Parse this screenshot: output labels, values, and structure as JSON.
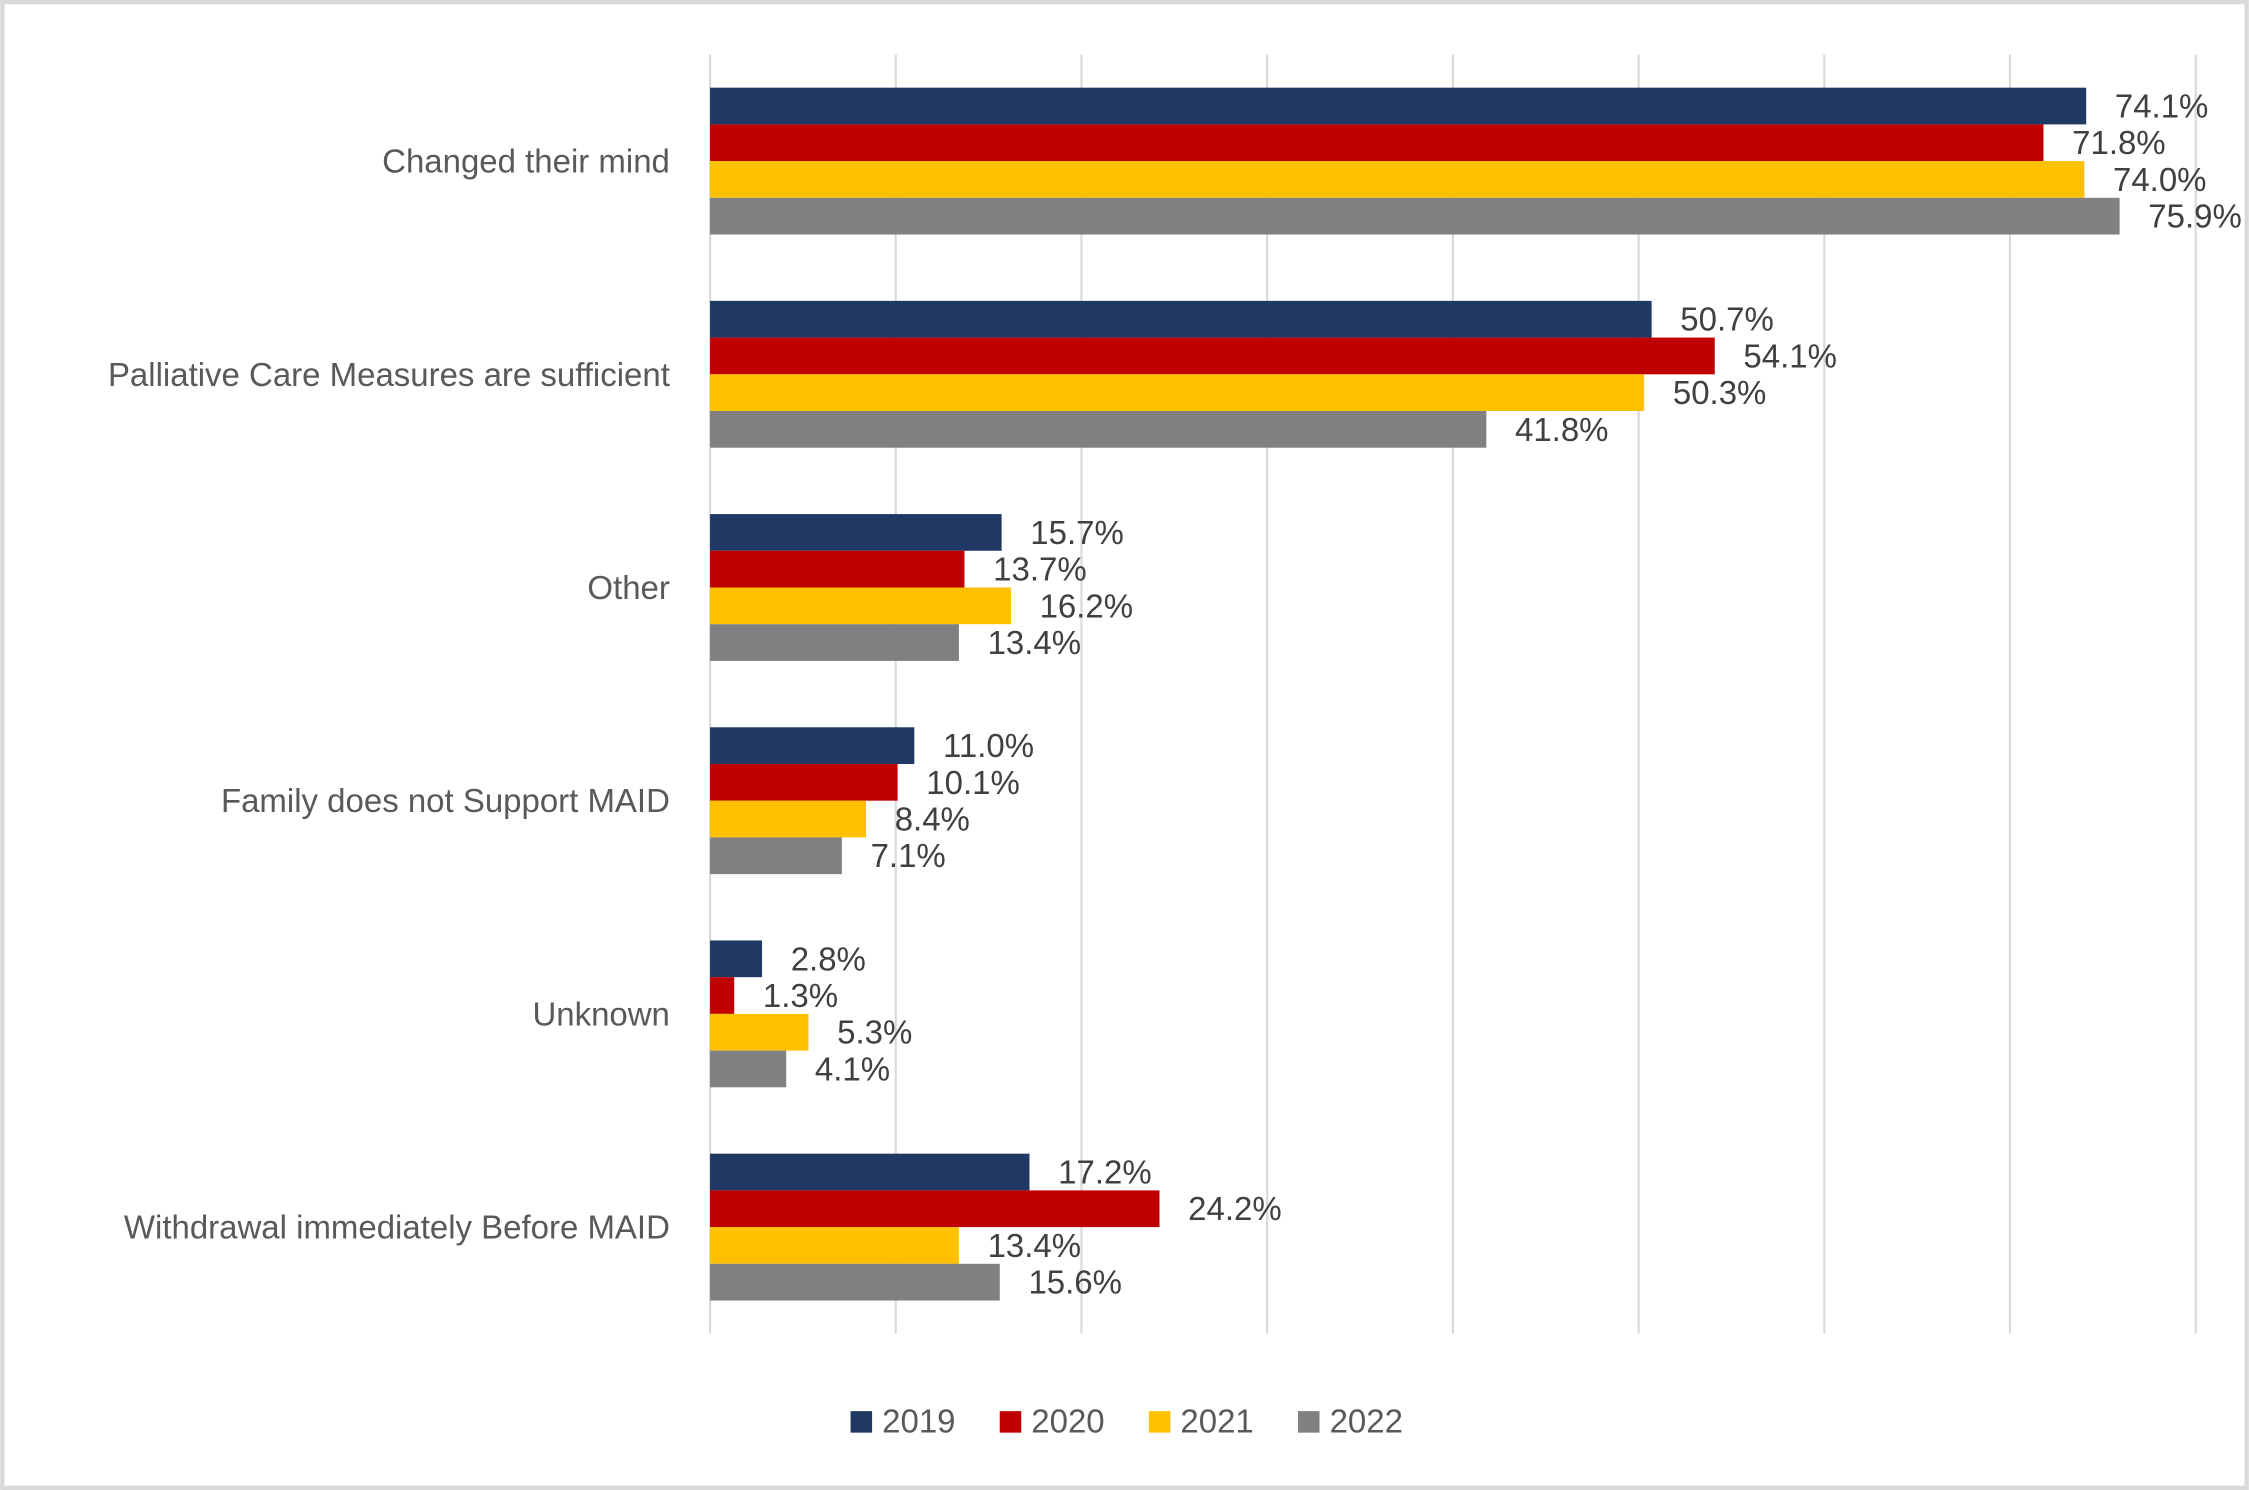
{
  "chart_data": {
    "type": "bar",
    "orientation": "horizontal",
    "title": "",
    "xlabel": "",
    "ylabel": "",
    "xlim": [
      0,
      80
    ],
    "grid": true,
    "x_gridline_step": 10,
    "x_tick_labels_shown": false,
    "legend_position": "bottom",
    "categories": [
      "Changed their mind",
      "Palliative Care Measures are sufficient",
      "Other",
      "Family does not Support MAID",
      "Unknown",
      "Withdrawal immediately Before MAID"
    ],
    "series": [
      {
        "name": "2019",
        "color": "#203864",
        "values": [
          74.1,
          50.7,
          15.7,
          11.0,
          2.8,
          17.2
        ],
        "labels": [
          "74.1%",
          "50.7%",
          "15.7%",
          "11.0%",
          "2.8%",
          "17.2%"
        ]
      },
      {
        "name": "2020",
        "color": "#C00000",
        "values": [
          71.8,
          54.1,
          13.7,
          10.1,
          1.3,
          24.2
        ],
        "labels": [
          "71.8%",
          "54.1%",
          "13.7%",
          "10.1%",
          "1.3%",
          "24.2%"
        ]
      },
      {
        "name": "2021",
        "color": "#FFC000",
        "values": [
          74.0,
          50.3,
          16.2,
          8.4,
          5.3,
          13.4
        ],
        "labels": [
          "74.0%",
          "50.3%",
          "16.2%",
          "8.4%",
          "5.3%",
          "13.4%"
        ]
      },
      {
        "name": "2022",
        "color": "#808080",
        "values": [
          75.9,
          41.8,
          13.4,
          7.1,
          4.1,
          15.6
        ],
        "labels": [
          "75.9%",
          "41.8%",
          "13.4%",
          "7.1%",
          "4.1%",
          "15.6%"
        ]
      }
    ]
  }
}
